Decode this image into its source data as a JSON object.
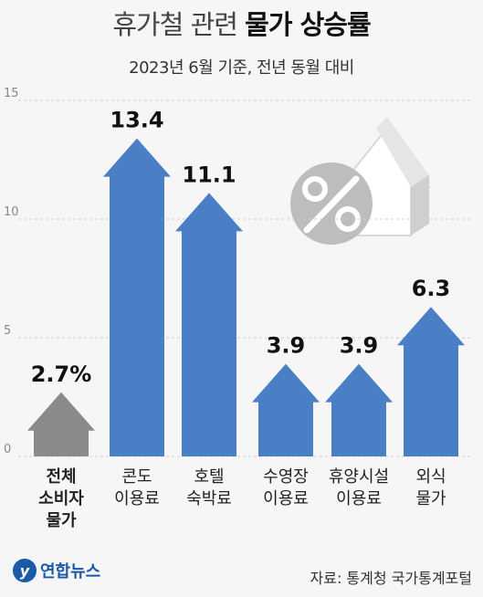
{
  "title_light": "휴가철 관련 ",
  "title_bold": "물가 상승률",
  "subtitle": "2023년 6월 기준, 전년 동월 대비",
  "source": "자료: 통계청 국가통계포털",
  "logo_text": "연합뉴스",
  "chart_data": {
    "type": "bar",
    "title": "휴가철 관련 물가 상승률",
    "subtitle": "2023년 6월 기준, 전년 동월 대비",
    "categories": [
      [
        "전체",
        "소비자",
        "물가"
      ],
      [
        "콘도",
        "이용료"
      ],
      [
        "호텔",
        "숙박료"
      ],
      [
        "수영장",
        "이용료"
      ],
      [
        "휴양시설",
        "이용료"
      ],
      [
        "외식",
        "물가"
      ]
    ],
    "values": [
      2.7,
      13.4,
      11.1,
      3.9,
      3.9,
      6.3
    ],
    "value_labels": [
      "2.7%",
      "13.4",
      "11.1",
      "3.9",
      "3.9",
      "6.3"
    ],
    "colors": [
      "#8a8a8a",
      "#4a7fc6",
      "#4a7fc6",
      "#4a7fc6",
      "#4a7fc6",
      "#4a7fc6"
    ],
    "yticks": [
      0,
      5,
      10,
      15
    ],
    "ylim": [
      0,
      15
    ],
    "grid": true
  }
}
